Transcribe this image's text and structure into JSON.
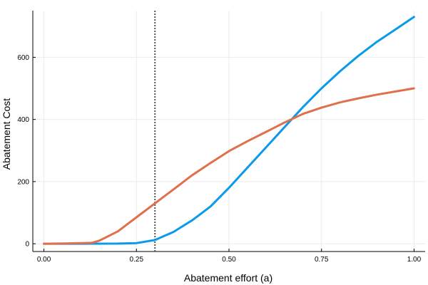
{
  "chart_data": {
    "type": "line",
    "title": "",
    "xlabel": "Abatement effort (a)",
    "ylabel": "Abatement Cost",
    "xlim": [
      -0.03,
      1.03
    ],
    "ylim": [
      -25,
      750
    ],
    "grid": true,
    "legend": "none",
    "x_ticks": [
      0.0,
      0.25,
      0.5,
      0.75,
      1.0
    ],
    "x_tick_labels": [
      "0.00",
      "0.25",
      "0.50",
      "0.75",
      "1.00"
    ],
    "y_ticks": [
      0,
      200,
      400,
      600
    ],
    "y_tick_labels": [
      "0",
      "200",
      "400",
      "600"
    ],
    "vline": {
      "x": 0.3,
      "style": "dotted",
      "color": "#555555"
    },
    "series": [
      {
        "color": "#0a9ae9",
        "points": [
          [
            0.0,
            0
          ],
          [
            0.1,
            0
          ],
          [
            0.2,
            0.5
          ],
          [
            0.25,
            2
          ],
          [
            0.3,
            12
          ],
          [
            0.35,
            38
          ],
          [
            0.4,
            75
          ],
          [
            0.45,
            120
          ],
          [
            0.5,
            180
          ],
          [
            0.55,
            245
          ],
          [
            0.6,
            310
          ],
          [
            0.65,
            375
          ],
          [
            0.7,
            440
          ],
          [
            0.75,
            500
          ],
          [
            0.8,
            555
          ],
          [
            0.85,
            605
          ],
          [
            0.9,
            650
          ],
          [
            0.95,
            690
          ],
          [
            1.0,
            730
          ]
        ]
      },
      {
        "color": "#e0704b",
        "points": [
          [
            0.0,
            0
          ],
          [
            0.05,
            1
          ],
          [
            0.1,
            2
          ],
          [
            0.13,
            3
          ],
          [
            0.15,
            10
          ],
          [
            0.2,
            40
          ],
          [
            0.25,
            85
          ],
          [
            0.3,
            130
          ],
          [
            0.35,
            175
          ],
          [
            0.4,
            220
          ],
          [
            0.45,
            260
          ],
          [
            0.5,
            298
          ],
          [
            0.55,
            330
          ],
          [
            0.6,
            360
          ],
          [
            0.65,
            390
          ],
          [
            0.7,
            418
          ],
          [
            0.75,
            438
          ],
          [
            0.8,
            455
          ],
          [
            0.85,
            468
          ],
          [
            0.9,
            480
          ],
          [
            0.95,
            490
          ],
          [
            1.0,
            500
          ]
        ]
      }
    ]
  }
}
